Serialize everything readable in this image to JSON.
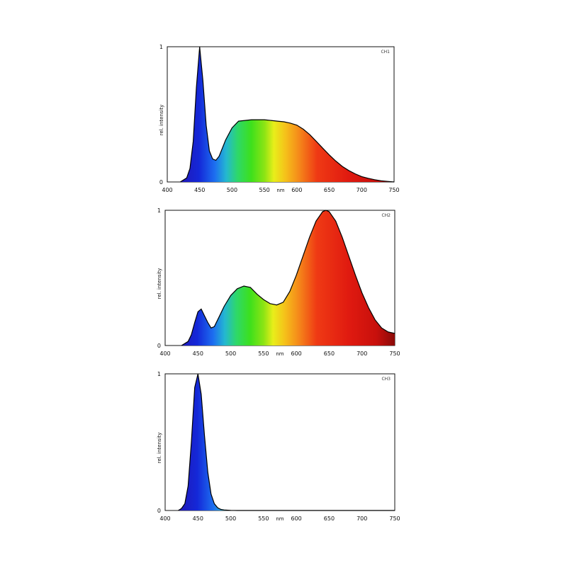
{
  "chart_data": [
    {
      "type": "area",
      "title": "",
      "tag": "CH1",
      "xlabel": "nm",
      "ylabel": "rel. intensity",
      "xlim": [
        400,
        750
      ],
      "ylim": [
        0,
        1
      ],
      "xticks": [
        "400",
        "450",
        "500",
        "550",
        "600",
        "650",
        "700",
        "750"
      ],
      "yticks": [
        "0",
        "1"
      ],
      "fill": "visible-spectrum gradient",
      "series": [
        {
          "x": [
            420,
            430,
            435,
            440,
            445,
            450,
            455,
            460,
            465,
            470,
            475,
            480,
            485,
            490,
            500,
            510,
            520,
            530,
            540,
            550,
            560,
            570,
            580,
            590,
            600,
            610,
            620,
            630,
            640,
            650,
            660,
            670,
            680,
            690,
            700,
            710,
            720,
            730,
            740,
            750
          ],
          "values": [
            0.0,
            0.03,
            0.1,
            0.3,
            0.7,
            1.0,
            0.75,
            0.42,
            0.23,
            0.17,
            0.16,
            0.19,
            0.25,
            0.31,
            0.4,
            0.45,
            0.455,
            0.46,
            0.46,
            0.46,
            0.455,
            0.45,
            0.445,
            0.435,
            0.42,
            0.39,
            0.35,
            0.3,
            0.25,
            0.2,
            0.155,
            0.115,
            0.085,
            0.06,
            0.04,
            0.027,
            0.017,
            0.009,
            0.004,
            0.0
          ]
        }
      ]
    },
    {
      "type": "area",
      "title": "",
      "tag": "CH2",
      "xlabel": "nm",
      "ylabel": "rel. intensity",
      "xlim": [
        400,
        750
      ],
      "ylim": [
        0,
        1
      ],
      "xticks": [
        "400",
        "450",
        "500",
        "550",
        "600",
        "650",
        "700",
        "750"
      ],
      "yticks": [
        "0",
        "1"
      ],
      "fill": "visible-spectrum gradient",
      "series": [
        {
          "x": [
            425,
            435,
            440,
            445,
            450,
            455,
            460,
            465,
            470,
            475,
            480,
            490,
            500,
            510,
            520,
            530,
            540,
            550,
            560,
            570,
            580,
            590,
            600,
            610,
            620,
            630,
            640,
            645,
            650,
            660,
            670,
            680,
            690,
            700,
            710,
            720,
            730,
            740,
            750
          ],
          "values": [
            0.0,
            0.03,
            0.08,
            0.17,
            0.25,
            0.27,
            0.22,
            0.17,
            0.13,
            0.14,
            0.19,
            0.29,
            0.37,
            0.42,
            0.44,
            0.43,
            0.38,
            0.34,
            0.31,
            0.3,
            0.32,
            0.4,
            0.52,
            0.66,
            0.8,
            0.92,
            0.99,
            1.0,
            0.99,
            0.92,
            0.8,
            0.66,
            0.52,
            0.39,
            0.28,
            0.19,
            0.13,
            0.1,
            0.09
          ]
        }
      ]
    },
    {
      "type": "area",
      "title": "",
      "tag": "CH3",
      "xlabel": "nm",
      "ylabel": "rel. intensity",
      "xlim": [
        400,
        750
      ],
      "ylim": [
        0,
        1
      ],
      "xticks": [
        "400",
        "450",
        "500",
        "550",
        "600",
        "650",
        "700",
        "750"
      ],
      "yticks": [
        "0",
        "1"
      ],
      "fill": "visible-spectrum gradient",
      "series": [
        {
          "x": [
            420,
            425,
            430,
            435,
            440,
            445,
            450,
            455,
            460,
            465,
            470,
            475,
            480,
            485,
            490,
            500,
            510,
            750
          ],
          "values": [
            0.0,
            0.015,
            0.05,
            0.18,
            0.5,
            0.9,
            1.0,
            0.85,
            0.55,
            0.28,
            0.12,
            0.05,
            0.02,
            0.008,
            0.004,
            0.001,
            0.0,
            0.0
          ]
        }
      ]
    }
  ]
}
